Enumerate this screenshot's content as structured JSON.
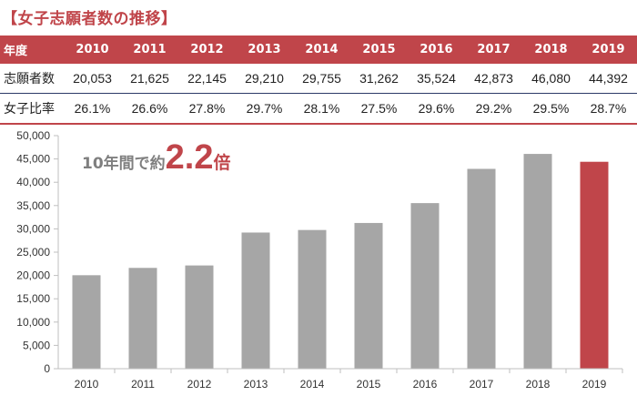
{
  "title": "【女子志願者数の推移】",
  "table": {
    "header_label": "年度",
    "rows": [
      {
        "label": "志願者数",
        "values": [
          "20,053",
          "21,625",
          "22,145",
          "29,210",
          "29,755",
          "31,262",
          "35,524",
          "42,873",
          "46,080",
          "44,392"
        ]
      },
      {
        "label": "女子比率",
        "values": [
          "26.1%",
          "26.6%",
          "27.8%",
          "29.7%",
          "28.1%",
          "27.5%",
          "29.6%",
          "29.2%",
          "29.5%",
          "28.7%"
        ]
      }
    ]
  },
  "callout": {
    "prefix": "10年間で約",
    "value": "2.2",
    "suffix": "倍"
  },
  "colors": {
    "accent": "#c0454a",
    "bar": "#a6a6a6",
    "callout_text": "#7f7f7f"
  },
  "chart_data": {
    "type": "bar",
    "categories": [
      "2010",
      "2011",
      "2012",
      "2013",
      "2014",
      "2015",
      "2016",
      "2017",
      "2018",
      "2019"
    ],
    "values": [
      20053,
      21625,
      22145,
      29210,
      29755,
      31262,
      35524,
      42873,
      46080,
      44392
    ],
    "ylim": [
      0,
      50000
    ],
    "yticks": [
      "0",
      "5,000",
      "10,000",
      "15,000",
      "20,000",
      "25,000",
      "30,000",
      "35,000",
      "40,000",
      "45,000",
      "50,000"
    ],
    "highlight_index": 9,
    "grid": false,
    "title": "",
    "xlabel": "",
    "ylabel": ""
  }
}
